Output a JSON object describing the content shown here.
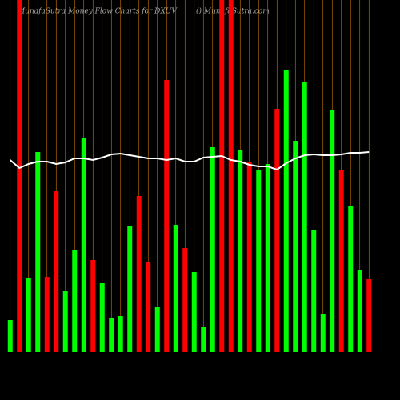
{
  "chart_data": {
    "type": "bar",
    "title": "MunafaSutra  Money Flow  Charts for DXUV",
    "subtitle": "() MunafaSutra.com",
    "categories": [
      null,
      null,
      null,
      null,
      null,
      null,
      null,
      null,
      null,
      null,
      null,
      null,
      null,
      null,
      null,
      null,
      null,
      null,
      null,
      null,
      null,
      null,
      null,
      null,
      null,
      null,
      null,
      null,
      null,
      null,
      null,
      null,
      null,
      null,
      null,
      null,
      null,
      null,
      null,
      null
    ],
    "series": [
      {
        "type": "bar",
        "values": [
          40,
          440,
          92,
          250,
          94,
          201,
          76,
          128,
          267,
          115,
          86,
          43,
          45,
          157,
          195,
          112,
          56,
          340,
          159,
          130,
          100,
          31,
          256,
          440,
          440,
          252,
          238,
          228,
          235,
          304,
          353,
          264,
          338,
          152,
          48,
          302,
          227,
          182,
          102,
          91
        ],
        "colors": [
          "#00ff00",
          "#ff0000",
          "#00ff00",
          "#00ff00",
          "#ff0000",
          "#ff0000",
          "#00ff00",
          "#00ff00",
          "#00ff00",
          "#ff0000",
          "#00ff00",
          "#00ff00",
          "#00ff00",
          "#00ff00",
          "#ff0000",
          "#ff0000",
          "#00ff00",
          "#ff0000",
          "#00ff00",
          "#ff0000",
          "#00ff00",
          "#00ff00",
          "#00ff00",
          "#ff0000",
          "#ff0000",
          "#00ff00",
          "#ff0000",
          "#00ff00",
          "#00ff00",
          "#ff0000",
          "#00ff00",
          "#00ff00",
          "#00ff00",
          "#00ff00",
          "#00ff00",
          "#00ff00",
          "#ff0000",
          "#00ff00",
          "#00ff00",
          "#ff0000"
        ]
      },
      {
        "type": "line",
        "color": "#ffffff",
        "values": [
          240,
          230,
          235,
          238,
          238,
          235,
          237,
          242,
          242,
          240,
          243,
          247,
          248,
          246,
          244,
          242,
          242,
          240,
          242,
          238,
          238,
          243,
          244,
          245,
          240,
          238,
          234,
          232,
          232,
          228,
          236,
          242,
          246,
          247,
          246,
          246,
          247,
          249,
          249,
          250
        ]
      }
    ],
    "ylim": [
      0,
      440
    ],
    "grid": true,
    "grid_color": "#c87800"
  }
}
